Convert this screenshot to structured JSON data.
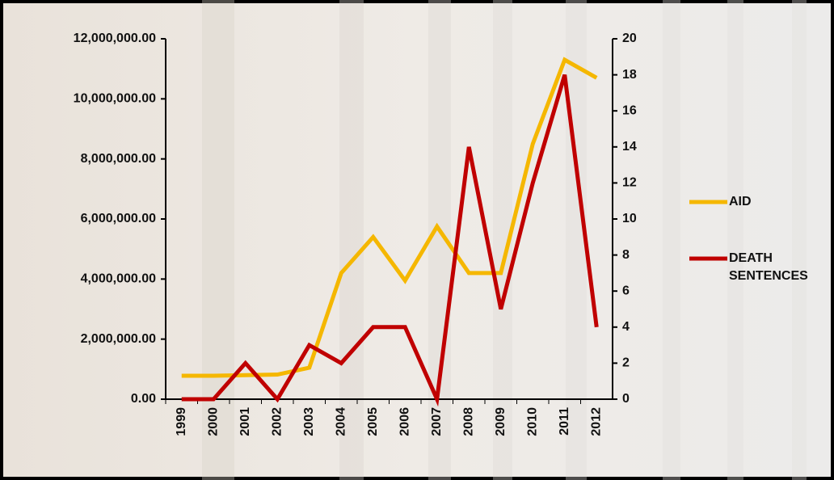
{
  "chart_data": {
    "type": "line",
    "categories": [
      "1999",
      "2000",
      "2001",
      "2002",
      "2003",
      "2004",
      "2005",
      "2006",
      "2007",
      "2008",
      "2009",
      "2010",
      "2011",
      "2012"
    ],
    "series": [
      {
        "name": "AID",
        "color": "#f5b700",
        "values": [
          780000,
          780000,
          800000,
          820000,
          1050000,
          4200000,
          5400000,
          3950000,
          5750000,
          4200000,
          4200000,
          8500000,
          11300000,
          10700000
        ]
      },
      {
        "name": "DEATH SENTENCES",
        "color": "#c00000",
        "axis": "y2",
        "values": [
          0,
          0,
          2,
          0,
          3,
          2,
          4,
          4,
          0,
          14,
          5,
          12,
          18,
          4
        ]
      }
    ],
    "ylim": [
      0,
      12000000
    ],
    "yticks": [
      {
        "value": 0,
        "label": "0.00"
      },
      {
        "value": 2000000,
        "label": "2,000,000.00"
      },
      {
        "value": 4000000,
        "label": "4,000,000.00"
      },
      {
        "value": 6000000,
        "label": "6,000,000.00"
      },
      {
        "value": 8000000,
        "label": "8,000,000.00"
      },
      {
        "value": 10000000,
        "label": "10,000,000.00"
      },
      {
        "value": 12000000,
        "label": "12,000,000.00"
      }
    ],
    "y2lim": [
      0,
      20
    ],
    "y2ticks": [
      0,
      2,
      4,
      6,
      8,
      10,
      12,
      14,
      16,
      18,
      20
    ],
    "grid": false,
    "legend": "right"
  }
}
